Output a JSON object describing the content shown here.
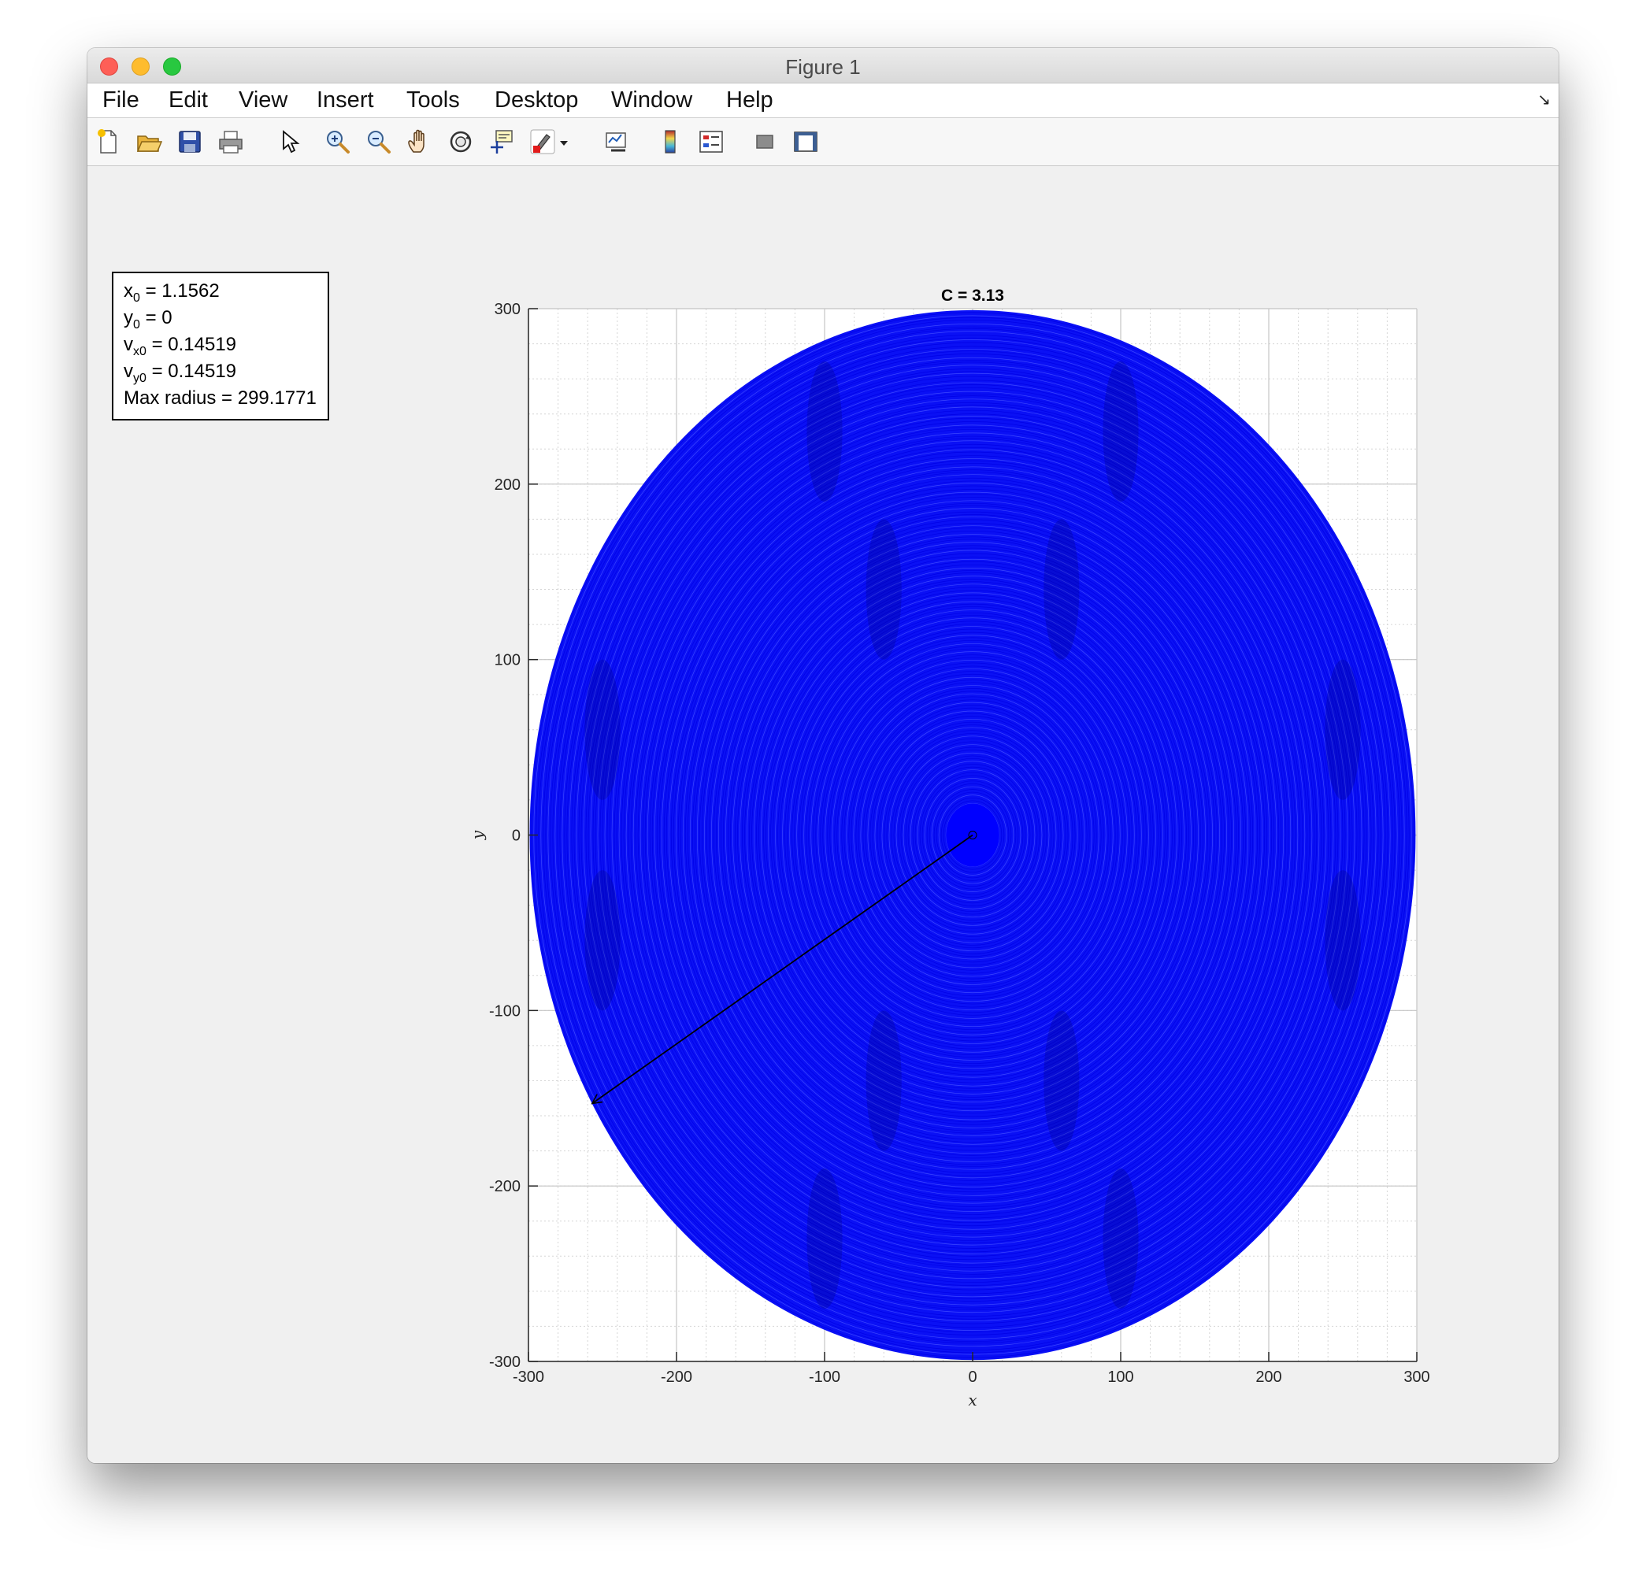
{
  "window": {
    "title": "Figure 1"
  },
  "menu": {
    "items": [
      "File",
      "Edit",
      "View",
      "Insert",
      "Tools",
      "Desktop",
      "Window",
      "Help"
    ],
    "corner_glyph": "↘"
  },
  "toolbar": {
    "tools": [
      {
        "name": "new-figure-icon"
      },
      {
        "name": "open-file-icon"
      },
      {
        "name": "save-icon"
      },
      {
        "name": "print-icon"
      },
      {
        "name": "edit-plot-arrow-icon"
      },
      {
        "name": "zoom-in-icon"
      },
      {
        "name": "zoom-out-icon"
      },
      {
        "name": "pan-hand-icon"
      },
      {
        "name": "rotate-3d-icon"
      },
      {
        "name": "data-cursor-icon"
      },
      {
        "name": "brush-icon"
      },
      {
        "name": "brush-dropdown-icon"
      },
      {
        "name": "link-plot-icon"
      },
      {
        "name": "insert-colorbar-icon"
      },
      {
        "name": "insert-legend-icon"
      },
      {
        "name": "hide-plot-tools-icon"
      },
      {
        "name": "show-plot-tools-icon"
      }
    ]
  },
  "annotation": {
    "lines": [
      {
        "base": "x",
        "sub": "0",
        "rest": " = 1.1562"
      },
      {
        "base": "y",
        "sub": "0",
        "rest": " = 0"
      },
      {
        "base": "v",
        "sub": "x0",
        "rest": " = 0.14519"
      },
      {
        "base": "v",
        "sub": "y0",
        "rest": " = 0.14519"
      },
      {
        "base": "Max radius = 299.1771",
        "sub": "",
        "rest": ""
      }
    ]
  },
  "chart_data": {
    "type": "line",
    "title": "C = 3.13",
    "xlabel": "x",
    "ylabel": "y",
    "xlim": [
      -300,
      300
    ],
    "ylim": [
      -300,
      300
    ],
    "xticks": [
      -300,
      -200,
      -100,
      0,
      100,
      200,
      300
    ],
    "yticks": [
      -300,
      -200,
      -100,
      0,
      100,
      200,
      300
    ],
    "xtick_labels": [
      "-300",
      "-200",
      "-100",
      "0",
      "100",
      "200",
      "300"
    ],
    "ytick_labels": [
      "-300",
      "-200",
      "-100",
      "0",
      "100",
      "200",
      "300"
    ],
    "grid": "on",
    "minor_grid": "on",
    "series": [
      {
        "style": "spiral trajectory filling a disk",
        "color": "#0000ff",
        "max_radius": 299.1771,
        "center": [
          0,
          0
        ],
        "inner_filled_radius": 18
      }
    ],
    "annotations": [
      {
        "type": "arrow",
        "from": [
          0,
          0
        ],
        "to": [
          -257,
          -153
        ],
        "color": "#000000"
      }
    ]
  }
}
